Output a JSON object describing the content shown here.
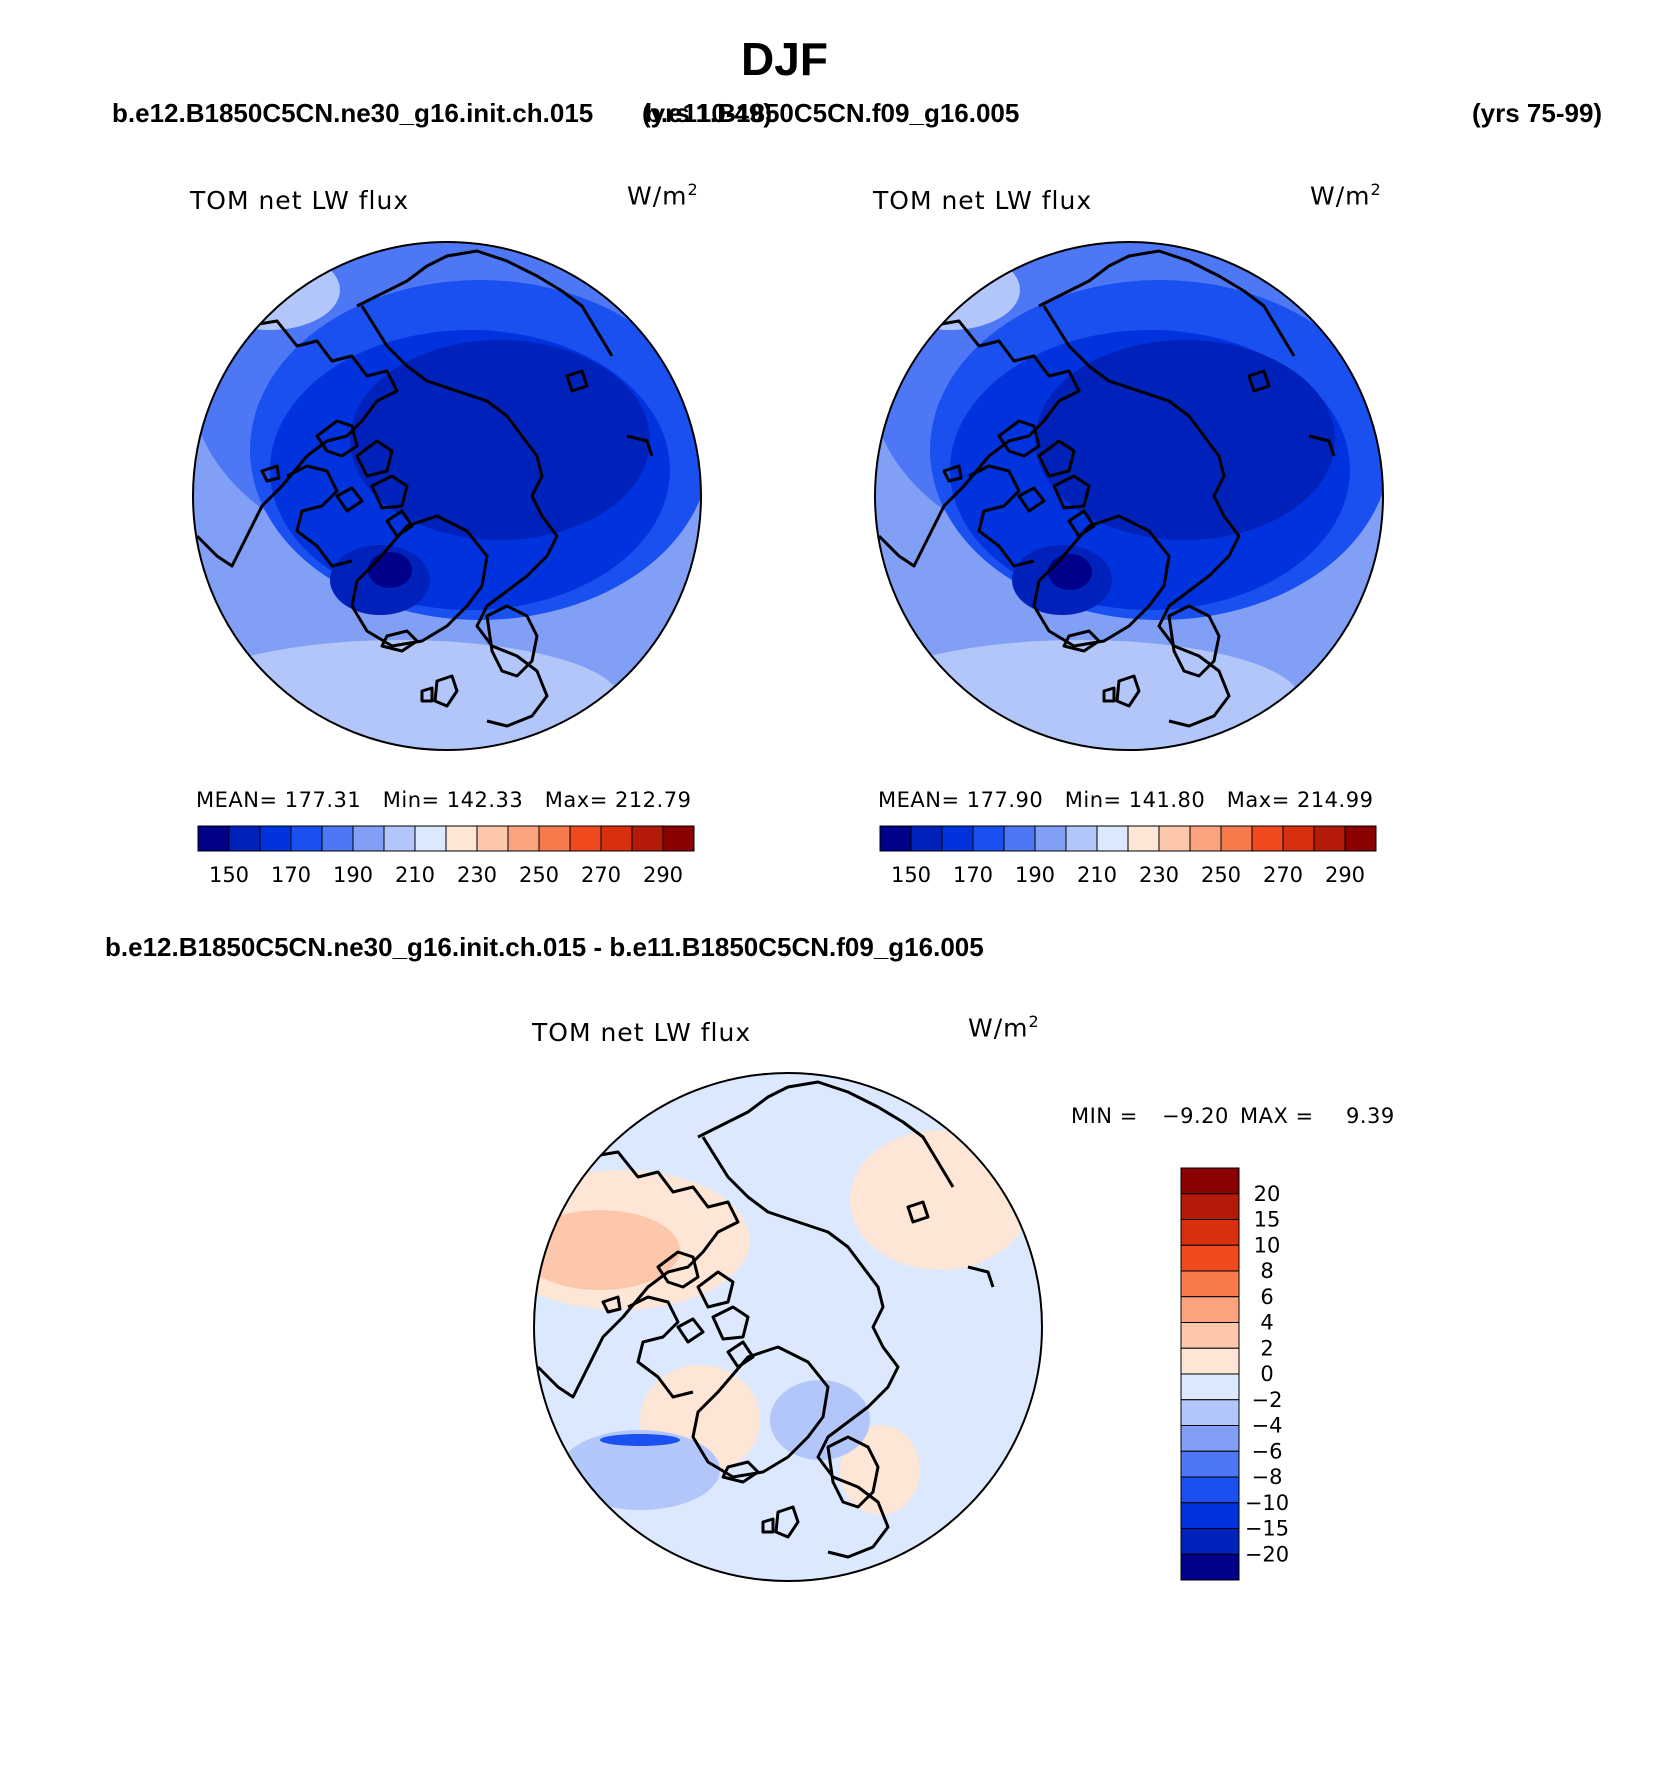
{
  "title": "DJF",
  "header": {
    "case1": "b.e12.B1850C5CN.ne30_g16.init.ch.015",
    "case1_years": "(yrs 10-49)",
    "case2": "b.e11.B1850C5CN.f09_g16.005",
    "case2_years": "(yrs 75-99)",
    "diff_title": "b.e12.B1850C5CN.ne30_g16.init.ch.015 - b.e11.B1850C5CN.f09_g16.005"
  },
  "panels": [
    {
      "variable": "TOM net LW flux",
      "units_base": "W/m",
      "units_exp": "2",
      "stats": "MEAN= 177.31   Min= 142.33   Max= 212.79"
    },
    {
      "variable": "TOM net LW flux",
      "units_base": "W/m",
      "units_exp": "2",
      "stats": "MEAN= 177.90   Min= 141.80   Max= 214.99"
    }
  ],
  "diff_panel": {
    "variable": "TOM net LW flux",
    "units_base": "W/m",
    "units_exp": "2",
    "min_label": "MIN =",
    "min_value": "−9.20",
    "max_label": "MAX =",
    "max_value": "9.39"
  },
  "colorbar_abs": {
    "colors": [
      "#00008b",
      "#0022bb",
      "#0033dd",
      "#1a4ff0",
      "#4d77f5",
      "#809ff5",
      "#b3c6fa",
      "#dbe8fd",
      "#fde6d6",
      "#fcc7aa",
      "#faa37e",
      "#f77a4d",
      "#f04a1e",
      "#d8300f",
      "#b31b08",
      "#8b0000"
    ],
    "labels": [
      "150",
      "170",
      "190",
      "210",
      "230",
      "250",
      "270",
      "290"
    ]
  },
  "colorbar_diff": {
    "colors": [
      "#8b0000",
      "#b31b08",
      "#d8300f",
      "#f04a1e",
      "#f77a4d",
      "#faa37e",
      "#fcc7aa",
      "#fde6d6",
      "#dbe8fd",
      "#b3c6fa",
      "#809ff5",
      "#4d77f5",
      "#1a4ff0",
      "#0033dd",
      "#0022bb",
      "#00008b"
    ],
    "labels": [
      "20",
      "15",
      "10",
      "8",
      "6",
      "4",
      "2",
      "0",
      "−2",
      "−4",
      "−6",
      "−8",
      "−10",
      "−15",
      "−20"
    ]
  }
}
